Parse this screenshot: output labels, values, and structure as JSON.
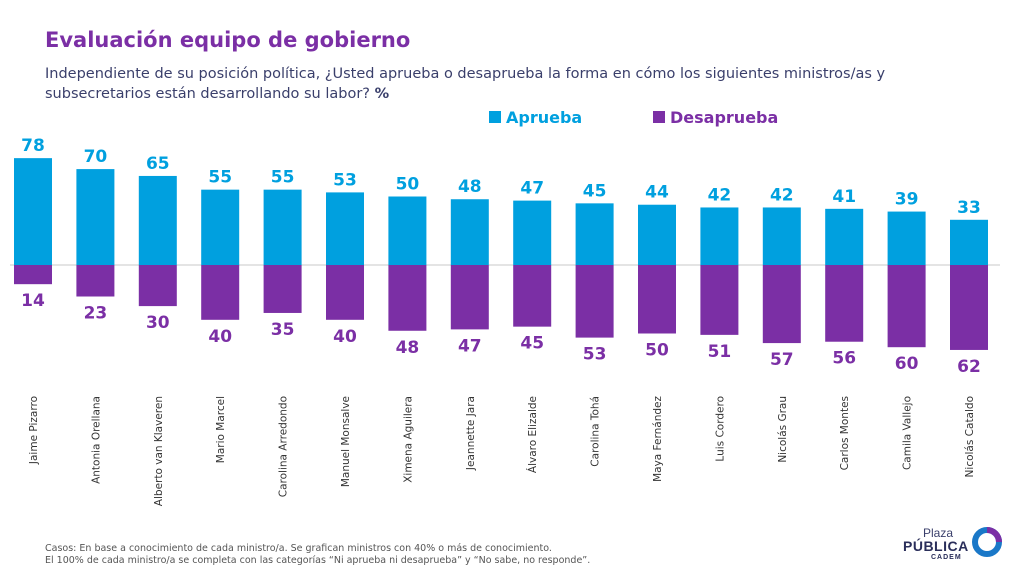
{
  "header": {
    "title": "Evaluación equipo de gobierno",
    "subtitle": "Independiente de su posición política, ¿Usted aprueba o desaprueba la forma en cómo los siguientes ministros/as y subsecretarios están desarrollando su labor?",
    "subtitle_unit": "%"
  },
  "colors": {
    "aprueba": "#00A0DF",
    "desaprueba": "#7B2FA5"
  },
  "chart_data": {
    "type": "bar",
    "categories": [
      "Jaime Pizarro",
      "Antonia Orellana",
      "Alberto van Klaveren",
      "Mario Marcel",
      "Carolina Arredondo",
      "Manuel Monsalve",
      "Ximena Aguilera",
      "Jeannette Jara",
      "Álvaro Elizalde",
      "Carolina Tohá",
      "Maya Fernández",
      "Luis Cordero",
      "Nicolás Grau",
      "Carlos Montes",
      "Camila Vallejo",
      "Nicolás Cataldo"
    ],
    "series": [
      {
        "name": "Aprueba",
        "values": [
          78,
          70,
          65,
          55,
          55,
          53,
          50,
          48,
          47,
          45,
          44,
          42,
          42,
          41,
          39,
          33
        ]
      },
      {
        "name": "Desaprueba",
        "values": [
          14,
          23,
          30,
          40,
          35,
          40,
          48,
          47,
          45,
          53,
          50,
          51,
          57,
          56,
          60,
          62
        ]
      }
    ],
    "legend_position": "top-right",
    "grid": false
  },
  "footnote": {
    "label": "Casos:",
    "line1": "En base a conocimiento de cada ministro/a. Se grafican ministros con 40% o más de conocimiento.",
    "line2": "El 100% de cada ministro/a se completa con las categorías “Ni aprueba ni desaprueba” y “No sabe, no responde”."
  },
  "logo": {
    "line1": "Plaza",
    "line2": "PÚBLICA",
    "line3": "CADEM"
  }
}
